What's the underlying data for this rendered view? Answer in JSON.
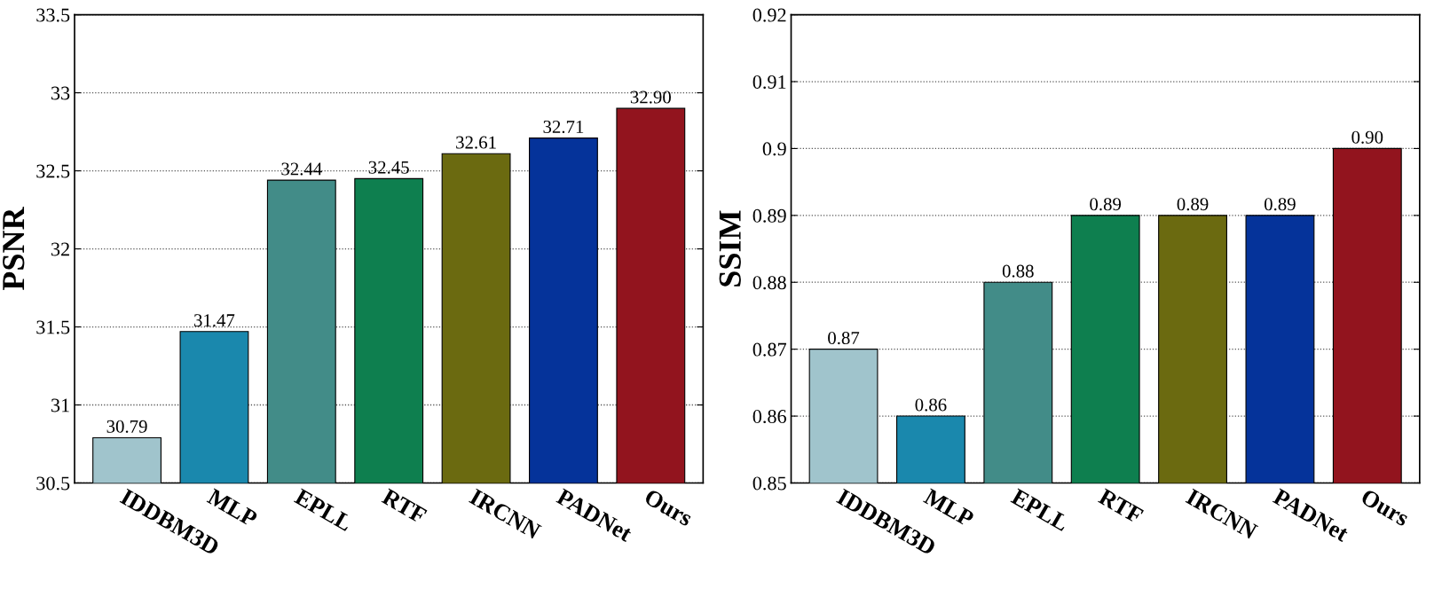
{
  "chart_data": [
    {
      "type": "bar",
      "ylabel": "PSNR",
      "categories": [
        "IDDBM3D",
        "MLP",
        "EPLL",
        "RTF",
        "IRCNN",
        "PADNet",
        "Ours"
      ],
      "values": [
        30.79,
        31.47,
        32.44,
        32.45,
        32.61,
        32.71,
        32.9
      ],
      "value_labels": [
        "30.79",
        "31.47",
        "32.44",
        "32.45",
        "32.61",
        "32.71",
        "32.90"
      ],
      "colors": [
        "#a0c4cc",
        "#1a88ad",
        "#428c88",
        "#0e7f4f",
        "#6b6a10",
        "#05339a",
        "#92141e"
      ],
      "ylim": [
        30.5,
        33.5
      ],
      "yticks": [
        30.5,
        31,
        31.5,
        32,
        32.5,
        33,
        33.5
      ],
      "grid": "y"
    },
    {
      "type": "bar",
      "ylabel": "SSIM",
      "categories": [
        "IDDBM3D",
        "MLP",
        "EPLL",
        "RTF",
        "IRCNN",
        "PADNet",
        "Ours"
      ],
      "values": [
        0.87,
        0.86,
        0.88,
        0.89,
        0.89,
        0.89,
        0.9
      ],
      "value_labels": [
        "0.87",
        "0.86",
        "0.88",
        "0.89",
        "0.89",
        "0.89",
        "0.90"
      ],
      "colors": [
        "#a0c4cc",
        "#1a88ad",
        "#428c88",
        "#0e7f4f",
        "#6b6a10",
        "#05339a",
        "#92141e"
      ],
      "ylim": [
        0.85,
        0.92
      ],
      "yticks": [
        0.85,
        0.86,
        0.87,
        0.88,
        0.89,
        0.9,
        0.91,
        0.92
      ],
      "grid": "y"
    }
  ]
}
